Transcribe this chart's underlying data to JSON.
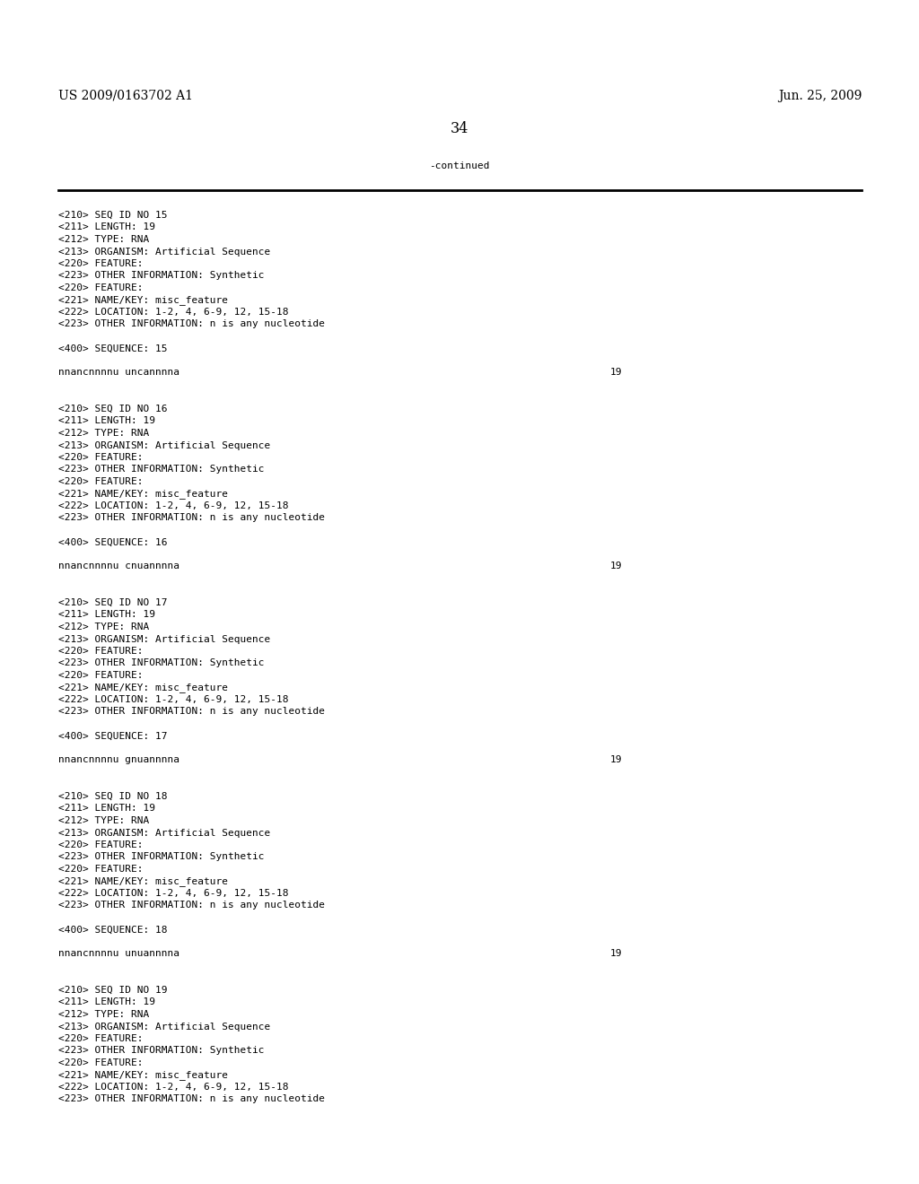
{
  "bg_color": "#ffffff",
  "header_left": "US 2009/0163702 A1",
  "header_right": "Jun. 25, 2009",
  "page_number": "34",
  "continued_label": "-continued",
  "font_size_header": 10.0,
  "font_size_body": 8.0,
  "font_size_page": 11.5,
  "mono_font": "DejaVu Sans Mono",
  "serif_font": "DejaVu Serif",
  "content": [
    "<210> SEQ ID NO 15",
    "<211> LENGTH: 19",
    "<212> TYPE: RNA",
    "<213> ORGANISM: Artificial Sequence",
    "<220> FEATURE:",
    "<223> OTHER INFORMATION: Synthetic",
    "<220> FEATURE:",
    "<221> NAME/KEY: misc_feature",
    "<222> LOCATION: 1-2, 4, 6-9, 12, 15-18",
    "<223> OTHER INFORMATION: n is any nucleotide",
    "",
    "<400> SEQUENCE: 15",
    "",
    "SEQLINE:nnancnnnnu uncannnna:19",
    "",
    "",
    "<210> SEQ ID NO 16",
    "<211> LENGTH: 19",
    "<212> TYPE: RNA",
    "<213> ORGANISM: Artificial Sequence",
    "<220> FEATURE:",
    "<223> OTHER INFORMATION: Synthetic",
    "<220> FEATURE:",
    "<221> NAME/KEY: misc_feature",
    "<222> LOCATION: 1-2, 4, 6-9, 12, 15-18",
    "<223> OTHER INFORMATION: n is any nucleotide",
    "",
    "<400> SEQUENCE: 16",
    "",
    "SEQLINE:nnancnnnnu cnuannnna:19",
    "",
    "",
    "<210> SEQ ID NO 17",
    "<211> LENGTH: 19",
    "<212> TYPE: RNA",
    "<213> ORGANISM: Artificial Sequence",
    "<220> FEATURE:",
    "<223> OTHER INFORMATION: Synthetic",
    "<220> FEATURE:",
    "<221> NAME/KEY: misc_feature",
    "<222> LOCATION: 1-2, 4, 6-9, 12, 15-18",
    "<223> OTHER INFORMATION: n is any nucleotide",
    "",
    "<400> SEQUENCE: 17",
    "",
    "SEQLINE:nnancnnnnu gnuannnna:19",
    "",
    "",
    "<210> SEQ ID NO 18",
    "<211> LENGTH: 19",
    "<212> TYPE: RNA",
    "<213> ORGANISM: Artificial Sequence",
    "<220> FEATURE:",
    "<223> OTHER INFORMATION: Synthetic",
    "<220> FEATURE:",
    "<221> NAME/KEY: misc_feature",
    "<222> LOCATION: 1-2, 4, 6-9, 12, 15-18",
    "<223> OTHER INFORMATION: n is any nucleotide",
    "",
    "<400> SEQUENCE: 18",
    "",
    "SEQLINE:nnancnnnnu unuannnna:19",
    "",
    "",
    "<210> SEQ ID NO 19",
    "<211> LENGTH: 19",
    "<212> TYPE: RNA",
    "<213> ORGANISM: Artificial Sequence",
    "<220> FEATURE:",
    "<223> OTHER INFORMATION: Synthetic",
    "<220> FEATURE:",
    "<221> NAME/KEY: misc_feature",
    "<222> LOCATION: 1-2, 4, 6-9, 12, 15-18",
    "<223> OTHER INFORMATION: n is any nucleotide"
  ]
}
